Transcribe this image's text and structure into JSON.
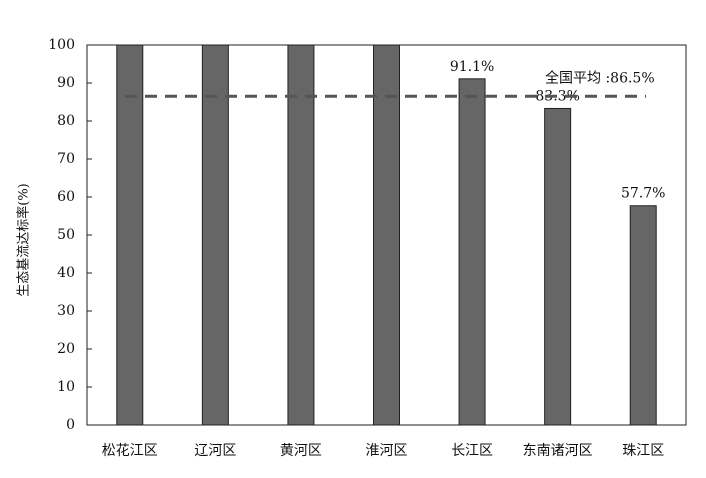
{
  "chart_data": {
    "type": "bar",
    "y_label": "生态基流达标率(%)",
    "categories": [
      "松花江区",
      "辽河区",
      "黄河区",
      "淮河区",
      "长江区",
      "东南诸河区",
      "珠江区"
    ],
    "values": [
      100,
      100,
      100,
      100,
      91.1,
      83.3,
      57.7
    ],
    "value_labels": [
      null,
      null,
      null,
      null,
      "91.1%",
      "83.3%",
      "57.7%"
    ],
    "color": "#666666",
    "average": {
      "value": 86.5,
      "label": "全国平均 :86.5%"
    },
    "ylim": [
      0,
      100
    ],
    "yticks": [
      0,
      10,
      20,
      30,
      40,
      50,
      60,
      70,
      80,
      90,
      100
    ]
  }
}
